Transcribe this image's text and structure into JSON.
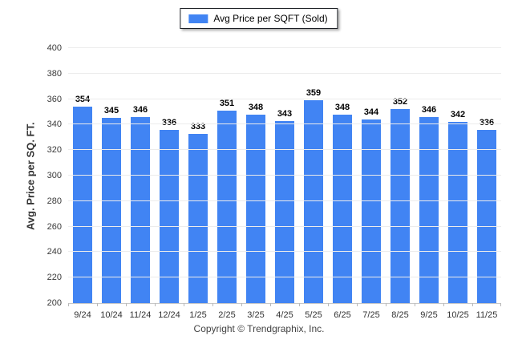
{
  "legend": {
    "label": "Avg Price per SQFT (Sold)"
  },
  "footer": {
    "copyright": "Copyright © Trendgraphix, Inc."
  },
  "colors": {
    "bar": "#4184F3",
    "gridline": "#ececec",
    "baseline": "#c8c8c8",
    "tick": "#b8b8b8",
    "axis_text": "#333333",
    "value_text": "#000000",
    "legend_border": "#1b1e24",
    "background": "#ffffff"
  },
  "chart_data": {
    "type": "bar",
    "title": "Avg Price per SQFT (Sold)",
    "xlabel": "",
    "ylabel": "Avg. Price per SQ. FT.",
    "categories": [
      "9/24",
      "10/24",
      "11/24",
      "12/24",
      "1/25",
      "2/25",
      "3/25",
      "4/25",
      "5/25",
      "6/25",
      "7/25",
      "8/25",
      "9/25",
      "10/25",
      "11/25"
    ],
    "values": [
      354,
      345,
      346,
      336,
      333,
      351,
      348,
      343,
      359,
      348,
      344,
      352,
      346,
      342,
      336
    ],
    "ylim": [
      200,
      400
    ],
    "ytick_step": 20,
    "grid": "horizontal",
    "legend_position": "top-center"
  }
}
